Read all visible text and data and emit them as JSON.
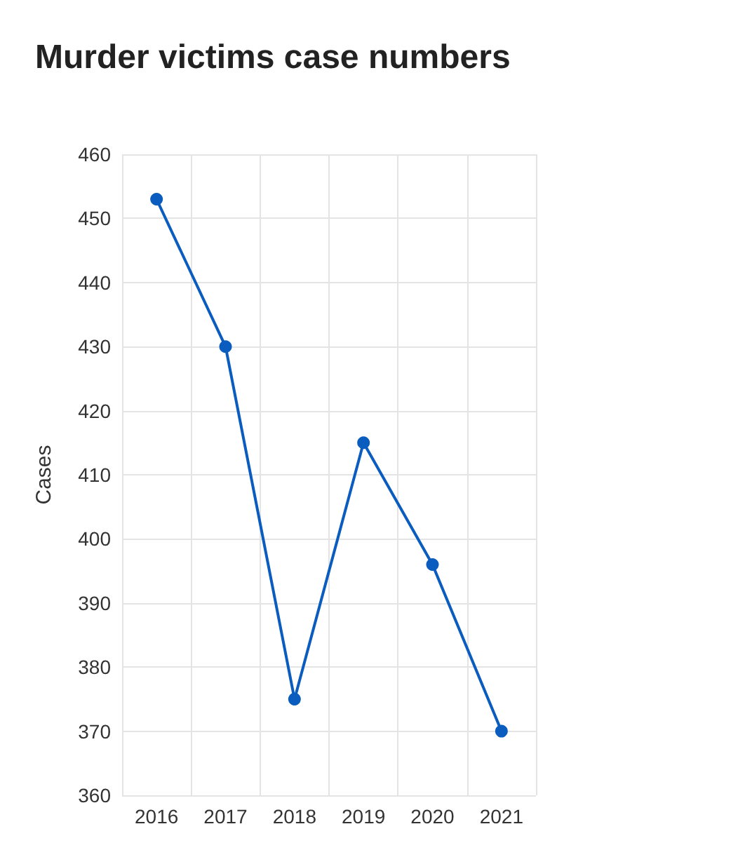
{
  "chart_data": {
    "type": "line",
    "title": "Murder victims case numbers",
    "ylabel": "Cases",
    "categories": [
      "2016",
      "2017",
      "2018",
      "2019",
      "2020",
      "2021"
    ],
    "series": [
      {
        "color": "#0a5cbf",
        "values": [
          453,
          430,
          375,
          415,
          396,
          370
        ]
      }
    ],
    "ylim": [
      360,
      460
    ],
    "yticks": [
      360,
      370,
      380,
      390,
      400,
      410,
      420,
      430,
      440,
      450,
      460
    ],
    "grid": true,
    "marker": "circle",
    "line_style": "solid"
  }
}
